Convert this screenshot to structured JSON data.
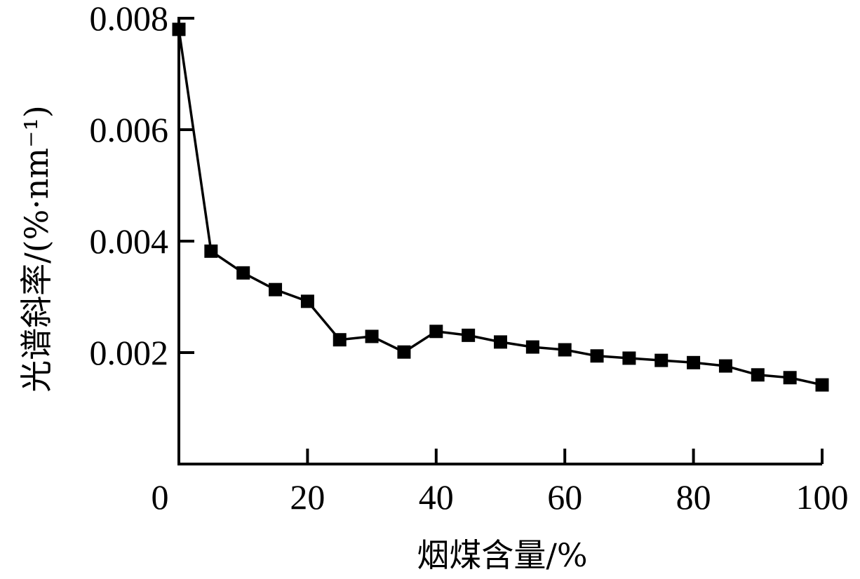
{
  "chart_data": {
    "type": "line",
    "title": "",
    "xlabel": "烟煤含量/%",
    "ylabel": "光谱斜率/(%·nm⁻¹)",
    "xlim": [
      0,
      100
    ],
    "ylim": [
      0,
      0.008
    ],
    "x_ticks": [
      "0",
      "20",
      "40",
      "60",
      "80",
      "100"
    ],
    "y_ticks": [
      "0.002",
      "0.004",
      "0.006",
      "0.008"
    ],
    "grid": false,
    "legend": null,
    "marker": "filled-square",
    "line_color": "#000000",
    "x": [
      0,
      5,
      10,
      15,
      20,
      25,
      30,
      35,
      40,
      45,
      50,
      55,
      60,
      65,
      70,
      75,
      80,
      85,
      90,
      95,
      100
    ],
    "series": [
      {
        "name": "光谱斜率",
        "values": [
          0.0078,
          0.00382,
          0.00343,
          0.00313,
          0.00292,
          0.00223,
          0.00229,
          0.00201,
          0.00238,
          0.00231,
          0.00219,
          0.0021,
          0.00205,
          0.00194,
          0.0019,
          0.00186,
          0.00182,
          0.00176,
          0.0016,
          0.00155,
          0.00142
        ]
      }
    ]
  }
}
